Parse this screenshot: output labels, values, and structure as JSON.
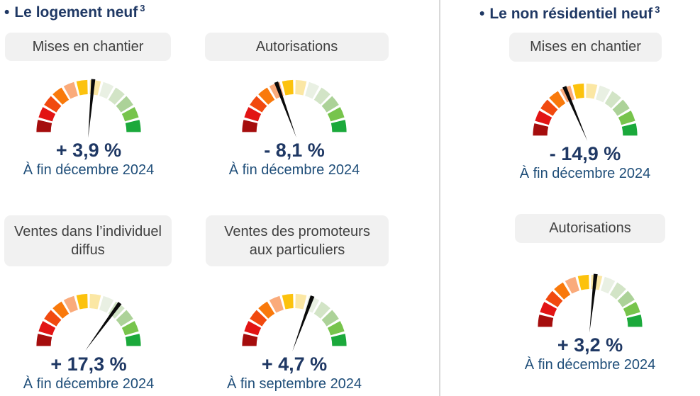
{
  "headers": {
    "left": {
      "bullet": "•",
      "text": "Le logement neuf",
      "sup": "3"
    },
    "right": {
      "bullet": "•",
      "text": "Le non résidentiel neuf",
      "sup": "3"
    }
  },
  "colors": {
    "title": "#1F3864",
    "value_text": "#1F3864",
    "period_text": "#1F4E79",
    "pill_bg": "#F1F1F1",
    "pill_text": "#404040",
    "needle": "#0A0A0A",
    "divider": "#D9D9D9"
  },
  "gauge_palette": [
    "#A50D0D",
    "#E21414",
    "#F1490F",
    "#F9790B",
    "#FAAB7B",
    "#FCC20D",
    "#FBE7A4",
    "#E9F0E3",
    "#D2E4C6",
    "#ACD298",
    "#77C44C",
    "#1BA93B"
  ],
  "chart_data": [
    {
      "type": "gauge",
      "section": "Le logement neuf",
      "title": "Mises en chantier",
      "value_label": "+ 3,9 %",
      "value_pct": 3.9,
      "period": "À fin décembre 2024",
      "needle_angle_deg": 5,
      "segments": 12,
      "scale_note": "qualitative semicircle, dark red (left) to green (right)"
    },
    {
      "type": "gauge",
      "section": "Le logement neuf",
      "title": "Autorisations",
      "value_label": "- 8,1 %",
      "value_pct": -8.1,
      "period": "À fin décembre 2024",
      "needle_angle_deg": -20,
      "segments": 12,
      "scale_note": "qualitative semicircle, dark red (left) to green (right)"
    },
    {
      "type": "gauge",
      "section": "Le logement neuf",
      "title": "Ventes dans l’individuel diffus",
      "value_label": "+ 17,3 %",
      "value_pct": 17.3,
      "period": "À fin décembre 2024",
      "needle_angle_deg": 36,
      "segments": 12,
      "scale_note": "qualitative semicircle, dark red (left) to green (right)"
    },
    {
      "type": "gauge",
      "section": "Le logement neuf",
      "title": "Ventes des promoteurs aux particuliers",
      "value_label": "+ 4,7 %",
      "value_pct": 4.7,
      "period": "À fin septembre 2024",
      "needle_angle_deg": 20,
      "segments": 12,
      "scale_note": "qualitative semicircle, dark red (left) to green (right)"
    },
    {
      "type": "gauge",
      "section": "Le non résidentiel neuf",
      "title": "Mises en chantier",
      "value_label": "- 14,9 %",
      "value_pct": -14.9,
      "period": "À fin décembre 2024",
      "needle_angle_deg": -23,
      "segments": 12,
      "scale_note": "qualitative semicircle, dark red (left) to green (right)"
    },
    {
      "type": "gauge",
      "section": "Le non résidentiel neuf",
      "title": "Autorisations",
      "value_label": "+ 3,2 %",
      "value_pct": 3.2,
      "period": "À fin décembre 2024",
      "needle_angle_deg": 6,
      "segments": 12,
      "scale_note": "qualitative semicircle, dark red (left) to green (right)"
    }
  ]
}
